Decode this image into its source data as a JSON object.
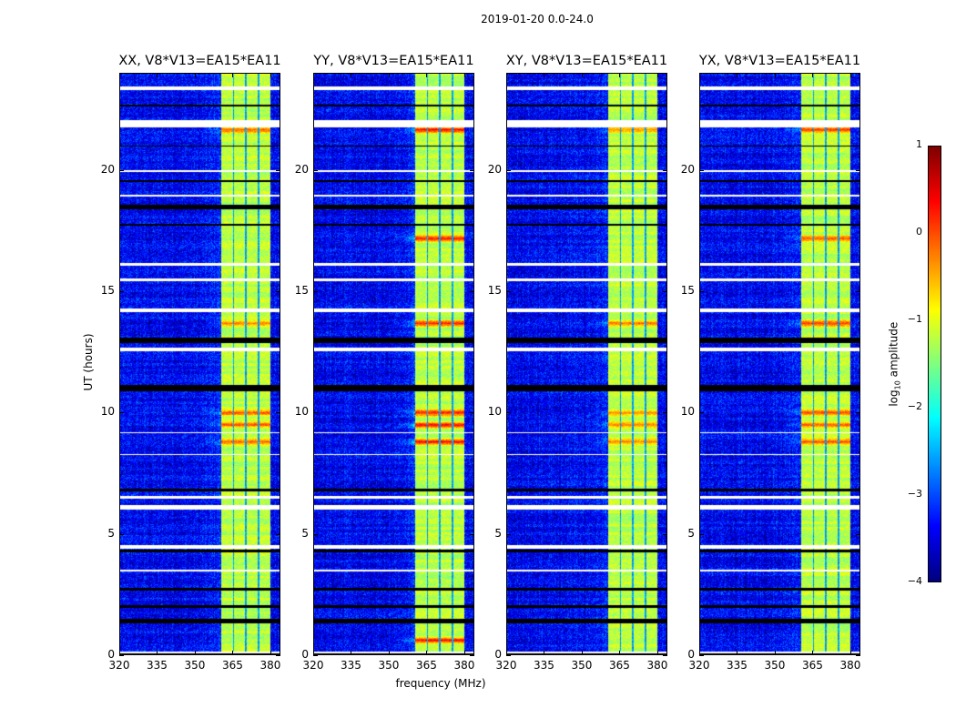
{
  "suptitle": "2019-01-20 0.0-24.0",
  "chart_data": [
    {
      "type": "heatmap",
      "title": "XX, V8*V13=EA15*EA11",
      "xlim": [
        320,
        384
      ],
      "ylim": [
        0,
        24
      ],
      "xticks": [
        "320",
        "335",
        "350",
        "365",
        "380"
      ],
      "yticks": [
        "0",
        "5",
        "10",
        "15",
        "20"
      ],
      "xlabel": "",
      "ylabel": "UT (hours)",
      "hot_hours": [
        21.7,
        13.7,
        10.0,
        9.5,
        8.8
      ],
      "hot_gain": 0.7
    },
    {
      "type": "heatmap",
      "title": "YY, V8*V13=EA15*EA11",
      "xlim": [
        320,
        384
      ],
      "ylim": [
        0,
        24
      ],
      "xticks": [
        "320",
        "335",
        "350",
        "365",
        "380"
      ],
      "yticks": [
        "0",
        "5",
        "10",
        "15",
        "20"
      ],
      "xlabel": "frequency (MHz)",
      "ylabel": "",
      "hot_hours": [
        21.7,
        17.2,
        13.7,
        10.0,
        9.5,
        8.8,
        0.6
      ],
      "hot_gain": 1.0
    },
    {
      "type": "heatmap",
      "title": "XY, V8*V13=EA15*EA11",
      "xlim": [
        320,
        384
      ],
      "ylim": [
        0,
        24
      ],
      "xticks": [
        "320",
        "335",
        "350",
        "365",
        "380"
      ],
      "yticks": [
        "0",
        "5",
        "10",
        "15",
        "20"
      ],
      "xlabel": "",
      "ylabel": "",
      "hot_hours": [
        21.7,
        13.7,
        10.0,
        9.5,
        8.8
      ],
      "hot_gain": 0.6
    },
    {
      "type": "heatmap",
      "title": "YX, V8*V13=EA15*EA11",
      "xlim": [
        320,
        384
      ],
      "ylim": [
        0,
        24
      ],
      "xticks": [
        "320",
        "335",
        "350",
        "365",
        "380"
      ],
      "yticks": [
        "0",
        "5",
        "10",
        "15",
        "20"
      ],
      "xlabel": "",
      "ylabel": "",
      "hot_hours": [
        21.7,
        17.2,
        13.7,
        10.0,
        9.5,
        8.8
      ],
      "hot_gain": 0.8
    }
  ],
  "shared": {
    "band_mhz": [
      [
        360.5,
        365.0
      ],
      [
        365.6,
        370.0
      ],
      [
        370.6,
        375.0
      ],
      [
        375.6,
        380.0
      ]
    ],
    "baseline_log_amp": -3.4,
    "band_log_amp": -1.2,
    "flagged_white_hours": [
      [
        23.35,
        23.5
      ],
      [
        21.8,
        22.1
      ],
      [
        19.95,
        20.05
      ],
      [
        18.95,
        19.0
      ],
      [
        16.1,
        16.2
      ],
      [
        15.45,
        15.55
      ],
      [
        14.15,
        14.3
      ],
      [
        12.55,
        12.7
      ],
      [
        9.15,
        9.2
      ],
      [
        8.25,
        8.3
      ],
      [
        6.45,
        6.55
      ],
      [
        6.0,
        6.2
      ],
      [
        4.4,
        4.55
      ],
      [
        3.45,
        3.5
      ],
      [
        0.05,
        0.12
      ]
    ],
    "flagged_black_hours": [
      [
        22.65,
        22.75
      ],
      [
        21.0,
        21.05
      ],
      [
        19.55,
        19.62
      ],
      [
        18.4,
        18.6
      ],
      [
        17.75,
        17.8
      ],
      [
        12.9,
        13.1
      ],
      [
        10.9,
        11.15
      ],
      [
        6.75,
        6.85
      ],
      [
        4.25,
        4.35
      ],
      [
        2.65,
        2.75
      ],
      [
        1.95,
        2.05
      ],
      [
        1.3,
        1.5
      ],
      [
        0.0,
        0.04
      ]
    ]
  },
  "colorbar": {
    "label": "log10 amplitude",
    "label_main": "log",
    "label_sub": "10",
    "label_rest": " amplitude",
    "range": [
      -4,
      1
    ],
    "ticks": [
      "1",
      "0",
      "−1",
      "−2",
      "−3",
      "−4"
    ],
    "colormap": "jet"
  }
}
